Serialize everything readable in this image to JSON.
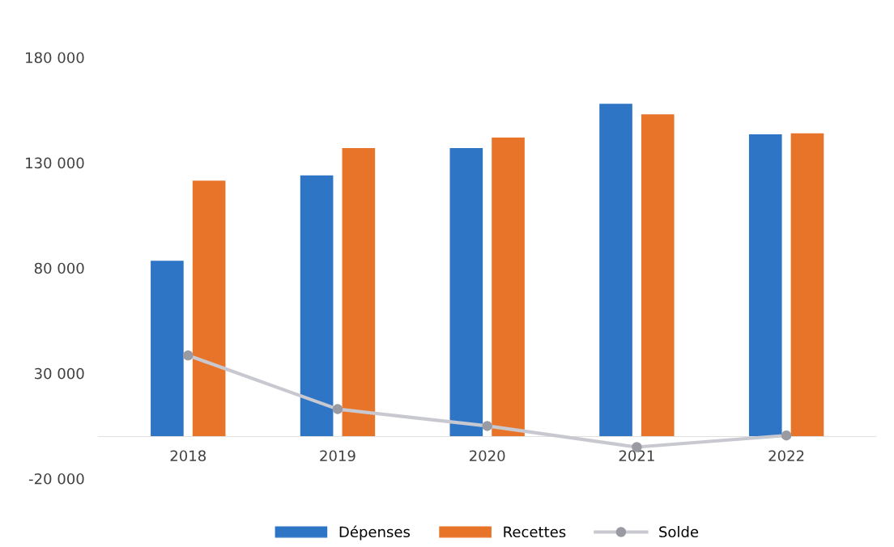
{
  "chart_data": {
    "type": "bar",
    "categories": [
      "2018",
      "2019",
      "2020",
      "2021",
      "2022"
    ],
    "series": [
      {
        "name": "Dépenses",
        "color": "#2e75c6",
        "values": [
          83500,
          124000,
          137000,
          158000,
          143500
        ]
      },
      {
        "name": "Recettes",
        "color": "#e8742a",
        "values": [
          121500,
          137000,
          142000,
          153000,
          144000
        ]
      },
      {
        "name": "Solde",
        "type": "line",
        "color": "#c8c8d0",
        "marker": "circle",
        "values": [
          38500,
          13000,
          5000,
          -5000,
          500
        ]
      }
    ],
    "ylim": [
      -20000,
      180000
    ],
    "yticks": [
      {
        "value": -20000,
        "label": "-20 000"
      },
      {
        "value": 30000,
        "label": "30 000"
      },
      {
        "value": 80000,
        "label": "80 000"
      },
      {
        "value": 130000,
        "label": "130 000"
      },
      {
        "value": 180000,
        "label": "180 000"
      }
    ],
    "grid": false,
    "legend": "bottom"
  }
}
